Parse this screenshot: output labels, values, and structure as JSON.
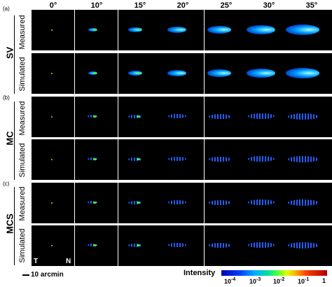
{
  "columns": [
    "0°",
    "10°",
    "15°",
    "20°",
    "25°",
    "30°",
    "35°"
  ],
  "panels": [
    {
      "letter": "(a)",
      "group": "SV",
      "rows": [
        "Measured",
        "Simulated"
      ]
    },
    {
      "letter": "(b)",
      "group": "MC",
      "rows": [
        "Measured",
        "Simulated"
      ]
    },
    {
      "letter": "(c)",
      "group": "MCS",
      "rows": [
        "Measured",
        "Simulated"
      ]
    }
  ],
  "corner_labels": {
    "temporal": "T",
    "nasal": "N"
  },
  "scale_bar": "10 arcmin",
  "colorbar": {
    "title": "Intensity",
    "ticks": [
      "10",
      "10",
      "10",
      "10",
      "1"
    ],
    "exponents": [
      "-4",
      "-3",
      "-2",
      "-1",
      ""
    ],
    "colors": [
      "#0000b0",
      "#00b0ff",
      "#40ff40",
      "#ffb000",
      "#b00000"
    ]
  }
}
